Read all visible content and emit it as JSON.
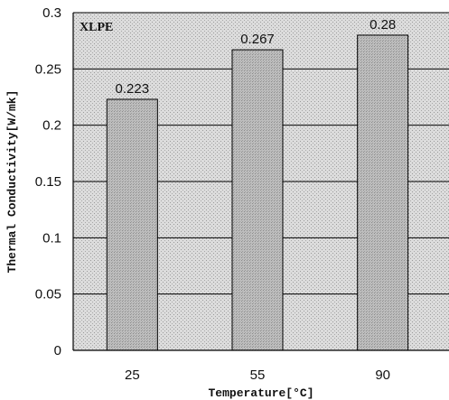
{
  "chart_data": {
    "type": "bar",
    "series_label": "XLPE",
    "categories": [
      "25",
      "55",
      "90"
    ],
    "values": [
      0.223,
      0.267,
      0.28
    ],
    "value_labels": [
      "0.223",
      "0.267",
      "0.28"
    ],
    "xlabel": "Temperature[°C]",
    "ylabel": "Thermal Conductivity[W/mk]",
    "ylim": [
      0,
      0.3
    ],
    "yticks": [
      {
        "value": 0,
        "label": "0"
      },
      {
        "value": 0.05,
        "label": "0.05"
      },
      {
        "value": 0.1,
        "label": "0.1"
      },
      {
        "value": 0.15,
        "label": "0.15"
      },
      {
        "value": 0.2,
        "label": "0.2"
      },
      {
        "value": 0.25,
        "label": "0.25"
      },
      {
        "value": 0.3,
        "label": "0.3"
      }
    ],
    "grid": true,
    "legend": "none",
    "colors": {
      "plot_bg": "#d6d6d6",
      "bar": "#b4b4b4",
      "gridline": "#000000"
    }
  }
}
